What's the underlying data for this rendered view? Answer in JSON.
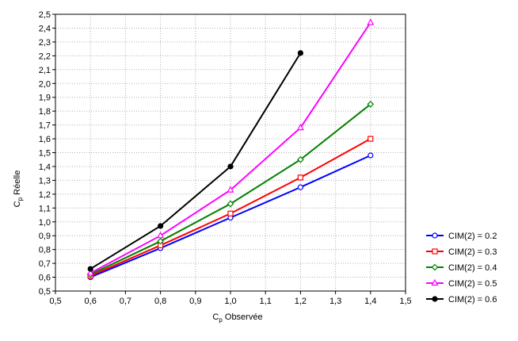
{
  "chart_data": {
    "type": "line",
    "xlabel_main": "C",
    "xlabel_sub": "p",
    "xlabel_rest": " Observée",
    "ylabel_main": "C",
    "ylabel_sub": "p",
    "ylabel_rest": " Réelle",
    "xlim": [
      0.5,
      1.5
    ],
    "ylim": [
      0.5,
      2.5
    ],
    "xticks": [
      "0,5",
      "0,6",
      "0,7",
      "0,8",
      "0,9",
      "1,0",
      "1,1",
      "1,2",
      "1,3",
      "1,4",
      "1,5"
    ],
    "yticks": [
      "0,5",
      "0,6",
      "0,7",
      "0,8",
      "0,9",
      "1,0",
      "1,1",
      "1,2",
      "1,3",
      "1,4",
      "1,5",
      "1,6",
      "1,7",
      "1,8",
      "1,9",
      "2,0",
      "2,1",
      "2,2",
      "2,3",
      "2,4",
      "2,5"
    ],
    "grid": true,
    "legend_position": "bottom-right",
    "series": [
      {
        "name": "CIM(2) = 0.2",
        "color": "#0000ff",
        "marker": "circle-open",
        "x": [
          0.6,
          0.8,
          1.0,
          1.2,
          1.4
        ],
        "y": [
          0.6,
          0.81,
          1.03,
          1.25,
          1.48
        ]
      },
      {
        "name": "CIM(2) = 0.3",
        "color": "#ff0000",
        "marker": "square-open",
        "x": [
          0.6,
          0.8,
          1.0,
          1.2,
          1.4
        ],
        "y": [
          0.61,
          0.83,
          1.06,
          1.32,
          1.6
        ]
      },
      {
        "name": "CIM(2) = 0.4",
        "color": "#008000",
        "marker": "diamond-open",
        "x": [
          0.6,
          0.8,
          1.0,
          1.2,
          1.4
        ],
        "y": [
          0.62,
          0.86,
          1.13,
          1.45,
          1.85
        ]
      },
      {
        "name": "CIM(2) = 0.5",
        "color": "#ff00ff",
        "marker": "triangle-open",
        "x": [
          0.6,
          0.8,
          1.0,
          1.2,
          1.4
        ],
        "y": [
          0.63,
          0.9,
          1.23,
          1.68,
          2.44
        ]
      },
      {
        "name": "CIM(2) = 0.6",
        "color": "#000000",
        "marker": "circle-filled",
        "x": [
          0.6,
          0.8,
          1.0,
          1.2
        ],
        "y": [
          0.66,
          0.97,
          1.4,
          2.22
        ]
      }
    ]
  }
}
